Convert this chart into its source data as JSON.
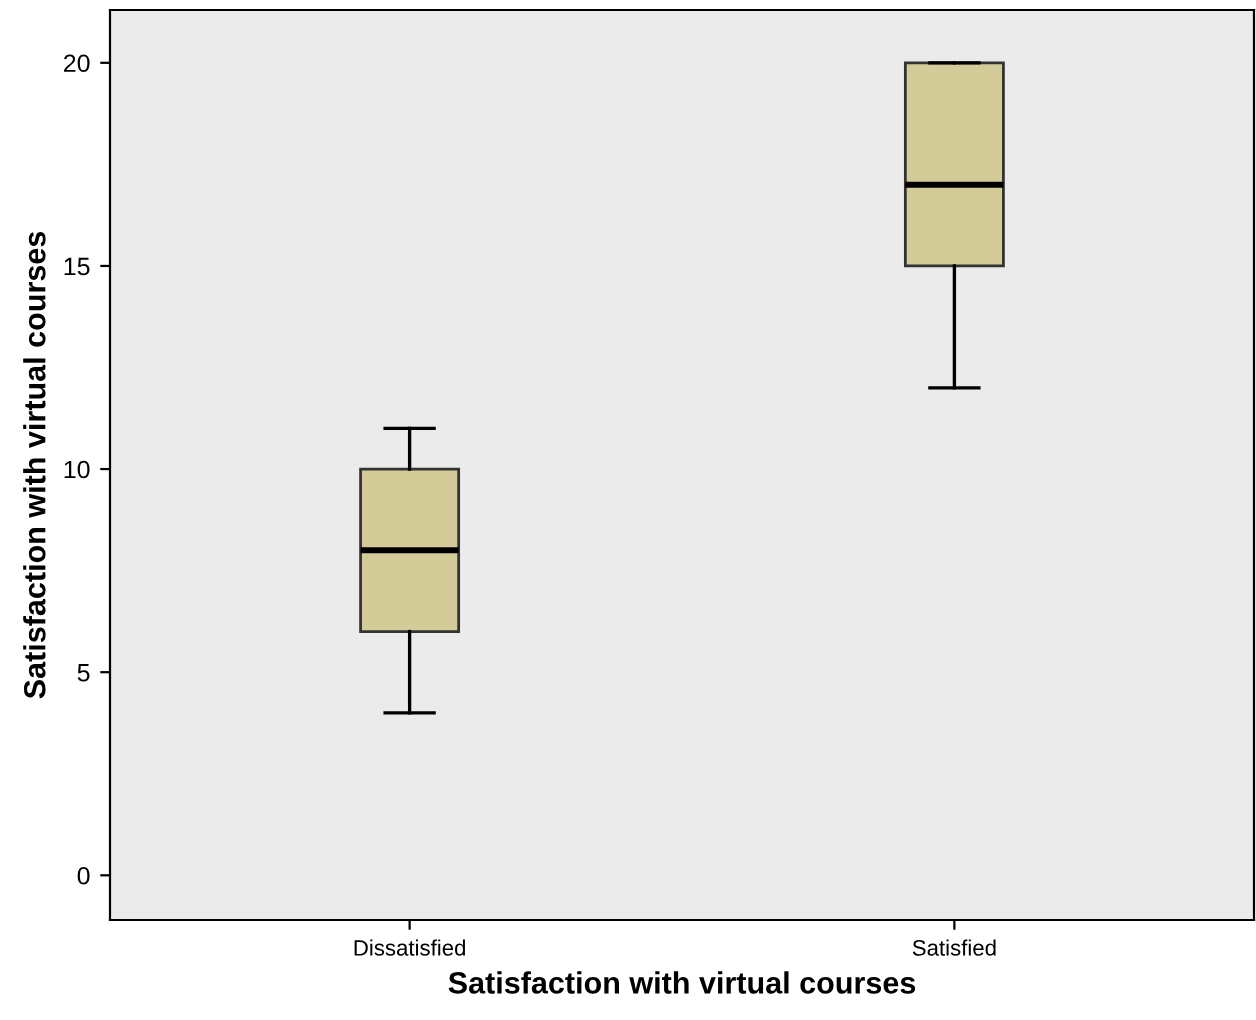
{
  "chart_data": {
    "type": "box",
    "xlabel": "Satisfaction with virtual courses",
    "ylabel": "Satisfaction with virtual courses",
    "categories": [
      "Dissatisfied",
      "Satisfied"
    ],
    "series": [
      {
        "color": "#d4cc98",
        "boxes": [
          {
            "low": 4,
            "q1": 6,
            "median": 8,
            "q3": 10,
            "high": 11
          },
          {
            "low": 12,
            "q1": 15,
            "median": 17,
            "q3": 20,
            "high": 20
          }
        ]
      }
    ],
    "ylim": [
      -1.1,
      21.3
    ],
    "yticks": [
      0,
      5,
      10,
      15,
      20
    ],
    "grid": false
  }
}
